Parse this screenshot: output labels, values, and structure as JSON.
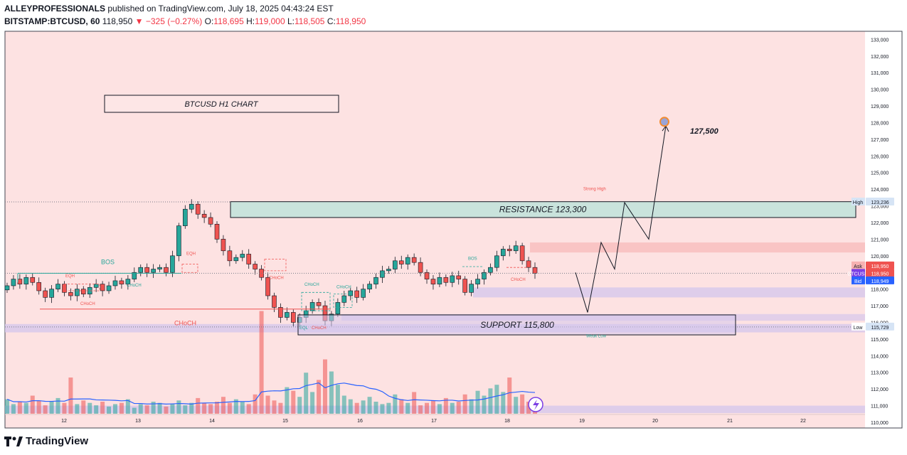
{
  "header": {
    "publisher": "ALLEYPROFESSIONALS",
    "published_text": "published on TradingView.com, July 18, 2025 04:43:24 EST",
    "symbol": "BITSTAMP:BTCUSD, 60",
    "last": "118,950",
    "change": "−325 (−0.27%)",
    "o_label": "O:",
    "o": "118,695",
    "h_label": "H:",
    "h": "119,000",
    "l_label": "L:",
    "l": "118,505",
    "c_label": "C:",
    "c": "118,950"
  },
  "footer": {
    "brand": "TradingView"
  },
  "colors": {
    "background": "#fde2e2",
    "up": "#26a69a",
    "down": "#ef5350",
    "volume_ma": "#2962ff",
    "resistance_box": "#c9e3dc",
    "support_box": "#d9c6ef"
  },
  "chart_data": {
    "type": "candlestick",
    "title": "BTCUSD H1 CHART",
    "ylim": [
      109700,
      133400
    ],
    "y_ticks": [
      "110,000",
      "111,000",
      "112,000",
      "113,000",
      "114,000",
      "115,000",
      "116,000",
      "117,000",
      "118,000",
      "119,000",
      "120,000",
      "121,000",
      "122,000",
      "123,000",
      "124,000",
      "125,000",
      "126,000",
      "127,000",
      "128,000",
      "129,000",
      "130,000",
      "131,000",
      "132,000",
      "133,000"
    ],
    "x_ticks": [
      "12",
      "13",
      "14",
      "15",
      "16",
      "17",
      "18",
      "19",
      "20",
      "21",
      "22"
    ],
    "price_path": [
      118200,
      118600,
      118300,
      118700,
      118400,
      117900,
      117500,
      118000,
      118300,
      117800,
      117600,
      118000,
      117700,
      118100,
      118300,
      117900,
      118200,
      118500,
      118300,
      118600,
      119000,
      119300,
      119000,
      119200,
      119300,
      119000,
      120000,
      121800,
      122800,
      123100,
      122500,
      122300,
      121900,
      121000,
      120300,
      119700,
      119900,
      120100,
      119500,
      119200,
      118700,
      117600,
      116900,
      116300,
      116600,
      116000,
      116300,
      116700,
      117200,
      117000,
      116100,
      116500,
      117200,
      117600,
      117900,
      117500,
      118000,
      118300,
      118700,
      119100,
      119200,
      119700,
      119500,
      119900,
      119600,
      119000,
      118600,
      118300,
      118700,
      118400,
      118800,
      118600,
      117800,
      118300,
      118600,
      119000,
      119300,
      120000,
      120400,
      120300,
      120600,
      119700,
      119300,
      118950
    ],
    "projection": [
      119000,
      116600,
      120800,
      119200,
      123200,
      121000,
      127800
    ],
    "volume": [
      12,
      8,
      10,
      9,
      15,
      11,
      7,
      10,
      13,
      9,
      30,
      8,
      11,
      9,
      7,
      10,
      6,
      8,
      9,
      12,
      5,
      8,
      7,
      10,
      9,
      6,
      8,
      11,
      7,
      9,
      13,
      9,
      8,
      10,
      14,
      9,
      12,
      10,
      8,
      16,
      85,
      15,
      11,
      9,
      22,
      19,
      14,
      34,
      18,
      28,
      45,
      35,
      24,
      15,
      12,
      9,
      11,
      14,
      10,
      8,
      9,
      16,
      12,
      9,
      18,
      7,
      9,
      11,
      8,
      13,
      9,
      10,
      16,
      12,
      19,
      15,
      21,
      24,
      18,
      30,
      14,
      16,
      10,
      9
    ],
    "levels": {
      "resistance_label": "RESISTANCE 123,300",
      "support_label": "SUPPORT 115,800",
      "target_label": "127,500",
      "strong_high": "Strong High",
      "weak_low": "Weak Low"
    },
    "structure_labels": {
      "bos": "BOS",
      "eqh": "EQH",
      "choch": "CHoCH",
      "eql": "EQL"
    },
    "price_tags": {
      "high_label": "High",
      "high_value": "123,236",
      "ask_label": "Ask",
      "ask_value": "118,950",
      "sym_label": "BTCUSD",
      "sym_value": "118,950",
      "bid_label": "Bid",
      "bid_value": "118,949",
      "low_label": "Low",
      "low_value": "115,729"
    }
  }
}
